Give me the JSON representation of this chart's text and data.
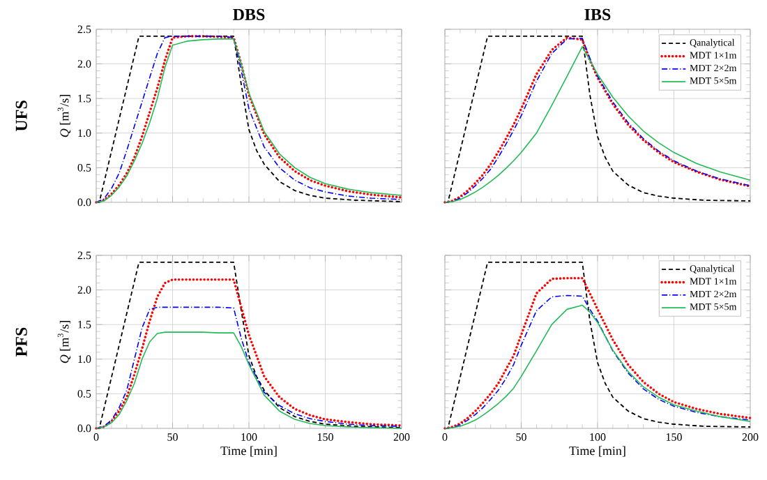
{
  "chart_data": [
    {
      "type": "line",
      "title": "DBS",
      "ylabel": "*Q* [m$^{3}$/s]",
      "annotations": [
        "UFS"
      ],
      "xlim": [
        0,
        200
      ],
      "ylim": [
        0,
        2.5
      ],
      "xticks": [
        0,
        50,
        100,
        150,
        200
      ],
      "yticks": [
        {
          "value": 0,
          "label": "0.0"
        },
        {
          "value": 0.5,
          "label": "0.5"
        },
        {
          "value": 1,
          "label": "1.0"
        },
        {
          "value": 1.5,
          "label": "1.5"
        },
        {
          "value": 2,
          "label": "2.0"
        },
        {
          "value": 2.5,
          "label": "2.5"
        }
      ],
      "grid": true,
      "tick_labels": "y",
      "series": [
        {
          "color": "#000000",
          "line_style": "dashed",
          "x": [
            0,
            2,
            28,
            90,
            95,
            100,
            105,
            110,
            120,
            130,
            140,
            150,
            170,
            200
          ],
          "values": [
            0,
            0,
            2.4,
            2.4,
            1.7,
            1.05,
            0.75,
            0.55,
            0.3,
            0.17,
            0.1,
            0.06,
            0.03,
            0.01
          ]
        },
        {
          "color": "#ff0000",
          "line_style": "dotted",
          "x": [
            0,
            5,
            10,
            15,
            20,
            25,
            30,
            35,
            40,
            45,
            50,
            60,
            70,
            80,
            90,
            95,
            100,
            110,
            120,
            130,
            140,
            150,
            165,
            180,
            200
          ],
          "values": [
            0,
            0.03,
            0.12,
            0.25,
            0.42,
            0.65,
            0.95,
            1.3,
            1.65,
            2.05,
            2.38,
            2.4,
            2.4,
            2.39,
            2.38,
            2.0,
            1.55,
            0.98,
            0.65,
            0.45,
            0.32,
            0.24,
            0.16,
            0.11,
            0.07
          ]
        },
        {
          "color": "#0000ff",
          "line_style": "dashdot",
          "x": [
            0,
            5,
            10,
            15,
            20,
            25,
            30,
            35,
            40,
            45,
            50,
            60,
            70,
            80,
            90,
            95,
            100,
            110,
            120,
            130,
            140,
            150,
            165,
            180,
            200
          ],
          "values": [
            0,
            0.05,
            0.2,
            0.42,
            0.75,
            1.1,
            1.45,
            1.8,
            2.15,
            2.38,
            2.4,
            2.4,
            2.4,
            2.4,
            2.38,
            1.9,
            1.35,
            0.8,
            0.5,
            0.32,
            0.21,
            0.15,
            0.09,
            0.06,
            0.04
          ]
        },
        {
          "color": "#22bb55",
          "line_style": "solid",
          "x": [
            0,
            5,
            10,
            15,
            20,
            25,
            30,
            35,
            40,
            45,
            50,
            60,
            70,
            80,
            90,
            95,
            100,
            110,
            120,
            130,
            140,
            150,
            165,
            180,
            200
          ],
          "values": [
            0,
            0.02,
            0.1,
            0.22,
            0.38,
            0.6,
            0.85,
            1.15,
            1.5,
            1.95,
            2.27,
            2.33,
            2.35,
            2.36,
            2.36,
            2.0,
            1.58,
            1.02,
            0.7,
            0.5,
            0.36,
            0.27,
            0.19,
            0.14,
            0.1
          ]
        }
      ]
    },
    {
      "type": "line",
      "title": "IBS",
      "xlim": [
        0,
        200
      ],
      "ylim": [
        0,
        2.5
      ],
      "xticks": [
        0,
        50,
        100,
        150,
        200
      ],
      "yticks": [
        0,
        0.5,
        1,
        1.5,
        2,
        2.5
      ],
      "grid": true,
      "tick_labels": false,
      "legend": "top right",
      "series": [
        {
          "name": "Qanalytical",
          "color": "#000000",
          "line_style": "dashed",
          "x": [
            0,
            2,
            28,
            90,
            95,
            100,
            105,
            110,
            120,
            130,
            140,
            150,
            170,
            200
          ],
          "values": [
            0,
            0,
            2.4,
            2.4,
            1.55,
            0.95,
            0.65,
            0.45,
            0.25,
            0.14,
            0.09,
            0.06,
            0.03,
            0.02
          ]
        },
        {
          "name": "MDT 1×1m",
          "color": "#ff0000",
          "line_style": "dotted",
          "x": [
            0,
            5,
            10,
            15,
            20,
            25,
            30,
            35,
            40,
            45,
            50,
            60,
            70,
            80,
            90,
            95,
            100,
            110,
            120,
            130,
            140,
            150,
            165,
            180,
            200
          ],
          "values": [
            0,
            0.02,
            0.08,
            0.17,
            0.28,
            0.4,
            0.55,
            0.73,
            0.92,
            1.12,
            1.35,
            1.85,
            2.2,
            2.38,
            2.35,
            2.05,
            1.8,
            1.42,
            1.12,
            0.9,
            0.72,
            0.58,
            0.44,
            0.33,
            0.23
          ]
        },
        {
          "name": "MDT 2×2m",
          "color": "#0000ff",
          "line_style": "dashdot",
          "x": [
            0,
            5,
            10,
            15,
            20,
            25,
            30,
            35,
            40,
            45,
            50,
            60,
            70,
            80,
            90,
            95,
            100,
            110,
            120,
            130,
            140,
            150,
            165,
            180,
            200
          ],
          "values": [
            0,
            0.01,
            0.06,
            0.14,
            0.24,
            0.35,
            0.48,
            0.65,
            0.84,
            1.04,
            1.25,
            1.75,
            2.15,
            2.36,
            2.37,
            2.08,
            1.82,
            1.45,
            1.15,
            0.92,
            0.74,
            0.6,
            0.45,
            0.34,
            0.24
          ]
        },
        {
          "name": "MDT 5×5m",
          "color": "#22bb55",
          "line_style": "solid",
          "x": [
            0,
            5,
            10,
            15,
            20,
            25,
            30,
            35,
            40,
            45,
            50,
            60,
            70,
            80,
            90,
            95,
            100,
            110,
            120,
            130,
            140,
            150,
            165,
            180,
            200
          ],
          "values": [
            0,
            0.01,
            0.04,
            0.09,
            0.15,
            0.22,
            0.3,
            0.39,
            0.49,
            0.6,
            0.72,
            1.0,
            1.4,
            1.82,
            2.25,
            2.05,
            1.85,
            1.52,
            1.25,
            1.03,
            0.86,
            0.72,
            0.56,
            0.44,
            0.32
          ]
        }
      ]
    },
    {
      "type": "line",
      "ylabel": "*Q* [m$^{3}$/s]",
      "xlabel": "Time [min]",
      "annotations": [
        "PFS"
      ],
      "xlim": [
        0,
        200
      ],
      "ylim": [
        0,
        2.5
      ],
      "xticks": [
        0,
        50,
        100,
        150,
        200
      ],
      "yticks": [
        {
          "value": 0,
          "label": "0.0"
        },
        {
          "value": 0.5,
          "label": "0.5"
        },
        {
          "value": 1,
          "label": "1.0"
        },
        {
          "value": 1.5,
          "label": "1.5"
        },
        {
          "value": 2,
          "label": "2.0"
        },
        {
          "value": 2.5,
          "label": "2.5"
        }
      ],
      "grid": true,
      "series": [
        {
          "color": "#000000",
          "line_style": "dashed",
          "x": [
            0,
            2,
            28,
            90,
            95,
            100,
            105,
            110,
            120,
            130,
            140,
            150,
            170,
            200
          ],
          "values": [
            0,
            0,
            2.4,
            2.4,
            1.7,
            1.05,
            0.75,
            0.55,
            0.3,
            0.17,
            0.1,
            0.06,
            0.03,
            0.01
          ]
        },
        {
          "color": "#ff0000",
          "line_style": "dotted",
          "x": [
            0,
            5,
            10,
            15,
            20,
            25,
            30,
            35,
            40,
            45,
            50,
            60,
            70,
            80,
            90,
            95,
            100,
            110,
            120,
            130,
            140,
            150,
            165,
            180,
            200
          ],
          "values": [
            0,
            0.02,
            0.1,
            0.25,
            0.45,
            0.78,
            1.15,
            1.55,
            1.9,
            2.1,
            2.15,
            2.15,
            2.15,
            2.15,
            2.15,
            1.75,
            1.35,
            0.75,
            0.45,
            0.28,
            0.19,
            0.13,
            0.09,
            0.06,
            0.04
          ]
        },
        {
          "color": "#0000ff",
          "line_style": "dashdot",
          "x": [
            0,
            5,
            10,
            15,
            20,
            25,
            30,
            35,
            40,
            45,
            50,
            60,
            70,
            80,
            90,
            95,
            100,
            110,
            120,
            130,
            140,
            150,
            165,
            180,
            200
          ],
          "values": [
            0,
            0.03,
            0.12,
            0.3,
            0.55,
            1.0,
            1.45,
            1.72,
            1.75,
            1.75,
            1.75,
            1.75,
            1.75,
            1.75,
            1.74,
            1.3,
            0.95,
            0.52,
            0.33,
            0.21,
            0.14,
            0.1,
            0.06,
            0.04,
            0.03
          ]
        },
        {
          "color": "#22bb55",
          "line_style": "solid",
          "x": [
            0,
            5,
            10,
            15,
            20,
            25,
            30,
            35,
            40,
            45,
            50,
            60,
            70,
            80,
            90,
            95,
            100,
            110,
            120,
            130,
            140,
            150,
            165,
            180,
            200
          ],
          "values": [
            0,
            0.02,
            0.08,
            0.2,
            0.4,
            0.65,
            1.0,
            1.25,
            1.37,
            1.39,
            1.39,
            1.39,
            1.39,
            1.38,
            1.38,
            1.18,
            0.92,
            0.48,
            0.25,
            0.13,
            0.07,
            0.04,
            0.02,
            0.01,
            0
          ]
        }
      ]
    },
    {
      "type": "line",
      "xlabel": "Time [min]",
      "xlim": [
        0,
        200
      ],
      "ylim": [
        0,
        2.5
      ],
      "xticks": [
        0,
        50,
        100,
        150,
        200
      ],
      "yticks": [
        0,
        0.5,
        1,
        1.5,
        2,
        2.5
      ],
      "grid": true,
      "tick_labels": "x",
      "legend": "top right",
      "series": [
        {
          "name": "Qanalytical",
          "color": "#000000",
          "line_style": "dashed",
          "x": [
            0,
            2,
            28,
            90,
            95,
            100,
            105,
            110,
            120,
            130,
            140,
            150,
            170,
            200
          ],
          "values": [
            0,
            0,
            2.4,
            2.4,
            1.55,
            0.95,
            0.65,
            0.45,
            0.25,
            0.14,
            0.09,
            0.06,
            0.03,
            0.02
          ]
        },
        {
          "name": "MDT 1×1m",
          "color": "#ff0000",
          "line_style": "dotted",
          "x": [
            0,
            5,
            10,
            15,
            20,
            25,
            30,
            35,
            40,
            45,
            50,
            60,
            70,
            80,
            90,
            95,
            100,
            110,
            120,
            130,
            140,
            150,
            165,
            180,
            200
          ],
          "values": [
            0,
            0.02,
            0.07,
            0.15,
            0.25,
            0.37,
            0.5,
            0.65,
            0.85,
            1.05,
            1.35,
            1.95,
            2.16,
            2.17,
            2.17,
            1.95,
            1.72,
            1.28,
            0.92,
            0.67,
            0.5,
            0.38,
            0.28,
            0.21,
            0.15
          ]
        },
        {
          "name": "MDT 2×2m",
          "color": "#0000ff",
          "line_style": "dashdot",
          "x": [
            0,
            5,
            10,
            15,
            20,
            25,
            30,
            35,
            40,
            45,
            50,
            60,
            70,
            80,
            90,
            95,
            100,
            110,
            120,
            130,
            140,
            150,
            165,
            180,
            200
          ],
          "values": [
            0,
            0.01,
            0.05,
            0.12,
            0.2,
            0.3,
            0.42,
            0.55,
            0.72,
            0.92,
            1.2,
            1.7,
            1.9,
            1.92,
            1.91,
            1.72,
            1.55,
            1.12,
            0.8,
            0.57,
            0.42,
            0.32,
            0.23,
            0.17,
            0.12
          ]
        },
        {
          "name": "MDT 5×5m",
          "color": "#22bb55",
          "line_style": "solid",
          "x": [
            0,
            5,
            10,
            15,
            20,
            25,
            30,
            35,
            40,
            45,
            50,
            60,
            70,
            80,
            90,
            95,
            100,
            110,
            120,
            130,
            140,
            150,
            165,
            180,
            200
          ],
          "values": [
            0,
            0.01,
            0.03,
            0.07,
            0.12,
            0.19,
            0.27,
            0.36,
            0.46,
            0.58,
            0.75,
            1.12,
            1.5,
            1.72,
            1.78,
            1.68,
            1.53,
            1.13,
            0.82,
            0.6,
            0.45,
            0.34,
            0.25,
            0.17,
            0.1
          ]
        }
      ]
    }
  ]
}
